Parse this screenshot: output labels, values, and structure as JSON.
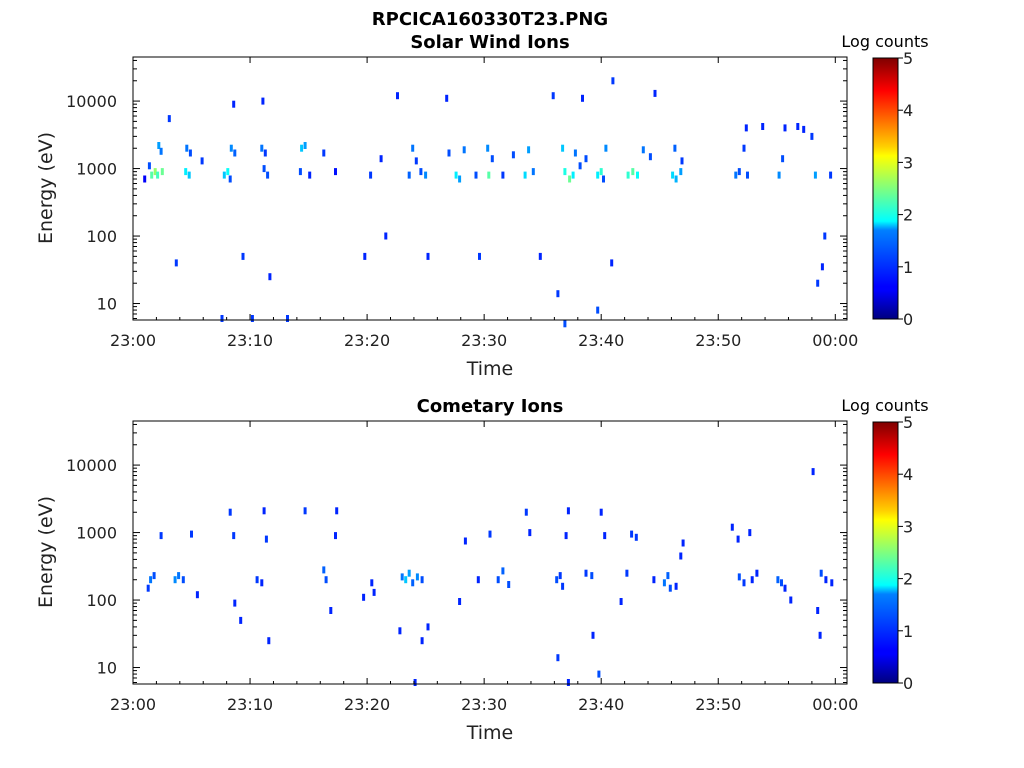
{
  "figure_title": "RPCICA160330T23.PNG",
  "chart_data": [
    {
      "type": "heatmap",
      "title": "Solar Wind Ions",
      "xlabel": "Time",
      "ylabel": "Energy (eV)",
      "x_ticks": [
        "23:00",
        "23:10",
        "23:20",
        "23:30",
        "23:40",
        "23:50",
        "00:00"
      ],
      "x_range_minutes": [
        0,
        61
      ],
      "y_ticks": [
        "10",
        "100",
        "1000",
        "10000"
      ],
      "y_scale": "log",
      "y_range": [
        5.7,
        45000
      ],
      "colorbar": {
        "label": "Log counts",
        "ticks": [
          "0",
          "1",
          "2",
          "3",
          "4",
          "5"
        ],
        "range": [
          0,
          5
        ],
        "colormap": "jet"
      },
      "points": [
        [
          1.6,
          800,
          2.3
        ],
        [
          1.9,
          900,
          2.6
        ],
        [
          2.1,
          800,
          2.2
        ],
        [
          2.5,
          900,
          2.4
        ],
        [
          2.2,
          2200,
          1.4
        ],
        [
          2.4,
          1800,
          1.2
        ],
        [
          1.4,
          1100,
          1.0
        ],
        [
          1.0,
          700,
          0.6
        ],
        [
          4.5,
          900,
          1.8
        ],
        [
          4.8,
          800,
          1.6
        ],
        [
          4.6,
          2000,
          1.2
        ],
        [
          4.9,
          1700,
          1.0
        ],
        [
          5.9,
          1300,
          0.9
        ],
        [
          7.8,
          800,
          1.6
        ],
        [
          8.1,
          900,
          1.9
        ],
        [
          8.4,
          2000,
          1.3
        ],
        [
          8.7,
          1700,
          1.1
        ],
        [
          8.3,
          700,
          1.0
        ],
        [
          11.0,
          2000,
          1.2
        ],
        [
          11.2,
          1000,
          1.0
        ],
        [
          11.5,
          800,
          1.0
        ],
        [
          11.3,
          1700,
          0.9
        ],
        [
          14.4,
          2000,
          1.6
        ],
        [
          14.7,
          2200,
          1.4
        ],
        [
          14.3,
          900,
          1.0
        ],
        [
          15.1,
          800,
          0.8
        ],
        [
          16.3,
          1700,
          0.9
        ],
        [
          17.3,
          900,
          0.7
        ],
        [
          20.3,
          800,
          0.9
        ],
        [
          21.2,
          1400,
          0.8
        ],
        [
          23.6,
          800,
          1.1
        ],
        [
          23.9,
          2000,
          1.2
        ],
        [
          24.2,
          1300,
          0.9
        ],
        [
          24.6,
          900,
          1.0
        ],
        [
          25.0,
          800,
          1.3
        ],
        [
          27.0,
          1700,
          1.0
        ],
        [
          27.6,
          800,
          1.8
        ],
        [
          27.9,
          700,
          1.4
        ],
        [
          28.3,
          1900,
          1.2
        ],
        [
          29.3,
          800,
          1.0
        ],
        [
          30.3,
          2000,
          1.3
        ],
        [
          30.4,
          800,
          2.3
        ],
        [
          30.7,
          1400,
          1.0
        ],
        [
          31.6,
          800,
          0.9
        ],
        [
          32.5,
          1600,
          1.0
        ],
        [
          33.5,
          800,
          1.7
        ],
        [
          33.8,
          1900,
          1.4
        ],
        [
          34.2,
          900,
          1.2
        ],
        [
          36.7,
          2000,
          1.6
        ],
        [
          36.9,
          900,
          2.0
        ],
        [
          37.3,
          700,
          2.4
        ],
        [
          37.6,
          800,
          1.8
        ],
        [
          37.8,
          1700,
          1.2
        ],
        [
          38.2,
          1100,
          1.0
        ],
        [
          38.7,
          1400,
          1.0
        ],
        [
          39.7,
          800,
          1.8
        ],
        [
          40.0,
          900,
          2.1
        ],
        [
          40.4,
          2000,
          1.3
        ],
        [
          40.2,
          700,
          1.0
        ],
        [
          42.3,
          800,
          2.1
        ],
        [
          42.7,
          900,
          2.3
        ],
        [
          43.1,
          800,
          1.9
        ],
        [
          43.6,
          1900,
          1.2
        ],
        [
          44.2,
          1500,
          1.0
        ],
        [
          46.1,
          800,
          1.7
        ],
        [
          46.4,
          700,
          1.5
        ],
        [
          46.8,
          900,
          1.4
        ],
        [
          46.3,
          2000,
          1.1
        ],
        [
          46.9,
          1300,
          0.9
        ],
        [
          51.5,
          800,
          1.2
        ],
        [
          51.8,
          900,
          1.0
        ],
        [
          52.2,
          2000,
          0.9
        ],
        [
          52.5,
          800,
          1.0
        ],
        [
          55.2,
          800,
          1.3
        ],
        [
          55.5,
          1400,
          1.0
        ],
        [
          58.3,
          800,
          1.4
        ],
        [
          59.6,
          800,
          0.9
        ],
        [
          58.0,
          3000,
          0.9
        ],
        [
          59.1,
          100,
          0.9
        ],
        [
          58.5,
          20,
          0.9
        ],
        [
          58.9,
          35,
          0.8
        ],
        [
          3.7,
          40,
          0.9
        ],
        [
          7.6,
          6,
          0.9
        ],
        [
          10.2,
          6,
          0.9
        ],
        [
          13.2,
          6,
          0.9
        ],
        [
          36.3,
          14,
          0.9
        ],
        [
          39.7,
          8,
          1.0
        ],
        [
          36.9,
          5,
          1.0
        ],
        [
          9.4,
          50,
          0.9
        ],
        [
          11.7,
          25,
          0.8
        ],
        [
          19.8,
          50,
          0.8
        ],
        [
          21.6,
          100,
          0.8
        ],
        [
          25.2,
          50,
          0.8
        ],
        [
          29.6,
          50,
          0.9
        ],
        [
          34.8,
          50,
          0.8
        ],
        [
          40.9,
          40,
          0.8
        ],
        [
          3.1,
          5500,
          0.9
        ],
        [
          8.6,
          9000,
          0.8
        ],
        [
          11.1,
          10000,
          0.8
        ],
        [
          22.6,
          12000,
          0.8
        ],
        [
          26.8,
          11000,
          0.8
        ],
        [
          35.9,
          12000,
          0.9
        ],
        [
          38.4,
          11000,
          0.8
        ],
        [
          41.0,
          20000,
          0.9
        ],
        [
          44.6,
          13000,
          0.8
        ],
        [
          52.4,
          4000,
          0.8
        ],
        [
          53.8,
          4200,
          0.8
        ],
        [
          55.7,
          4000,
          0.8
        ],
        [
          56.8,
          4200,
          0.8
        ],
        [
          57.3,
          3800,
          0.8
        ]
      ]
    },
    {
      "type": "heatmap",
      "title": "Cometary Ions",
      "xlabel": "Time",
      "ylabel": "Energy (eV)",
      "x_ticks": [
        "23:00",
        "23:10",
        "23:20",
        "23:30",
        "23:40",
        "23:50",
        "00:00"
      ],
      "x_range_minutes": [
        0,
        61
      ],
      "y_ticks": [
        "10",
        "100",
        "1000",
        "10000"
      ],
      "y_scale": "log",
      "y_range": [
        5.7,
        45000
      ],
      "colorbar": {
        "label": "Log counts",
        "ticks": [
          "0",
          "1",
          "2",
          "3",
          "4",
          "5"
        ],
        "range": [
          0,
          5
        ],
        "colormap": "jet"
      },
      "points": [
        [
          1.5,
          200,
          1.2
        ],
        [
          1.8,
          230,
          1.0
        ],
        [
          1.3,
          150,
          0.9
        ],
        [
          2.4,
          900,
          0.9
        ],
        [
          3.6,
          200,
          1.3
        ],
        [
          3.9,
          230,
          1.2
        ],
        [
          4.3,
          200,
          1.0
        ],
        [
          5.0,
          950,
          0.9
        ],
        [
          5.5,
          120,
          0.8
        ],
        [
          8.3,
          2000,
          0.9
        ],
        [
          8.6,
          900,
          0.9
        ],
        [
          8.7,
          90,
          0.8
        ],
        [
          9.2,
          50,
          0.8
        ],
        [
          10.6,
          200,
          0.9
        ],
        [
          11.0,
          180,
          0.8
        ],
        [
          11.2,
          2100,
          0.8
        ],
        [
          11.4,
          800,
          0.9
        ],
        [
          11.6,
          25,
          0.8
        ],
        [
          14.7,
          2100,
          0.9
        ],
        [
          16.3,
          280,
          1.1
        ],
        [
          16.5,
          200,
          1.0
        ],
        [
          16.9,
          70,
          0.8
        ],
        [
          17.3,
          900,
          0.8
        ],
        [
          17.4,
          2100,
          0.8
        ],
        [
          19.7,
          110,
          0.8
        ],
        [
          20.4,
          180,
          0.8
        ],
        [
          20.6,
          130,
          0.8
        ],
        [
          23.0,
          220,
          1.2
        ],
        [
          23.3,
          200,
          1.6
        ],
        [
          23.6,
          250,
          1.4
        ],
        [
          23.9,
          180,
          1.1
        ],
        [
          24.3,
          220,
          1.3
        ],
        [
          24.7,
          200,
          1.0
        ],
        [
          25.2,
          40,
          0.8
        ],
        [
          22.8,
          35,
          0.8
        ],
        [
          24.7,
          25,
          0.8
        ],
        [
          24.1,
          6,
          0.8
        ],
        [
          27.9,
          95,
          0.8
        ],
        [
          28.4,
          750,
          0.8
        ],
        [
          29.5,
          200,
          0.8
        ],
        [
          30.5,
          950,
          0.9
        ],
        [
          31.2,
          200,
          1.0
        ],
        [
          31.6,
          270,
          1.1
        ],
        [
          32.1,
          170,
          1.0
        ],
        [
          33.6,
          2000,
          0.9
        ],
        [
          33.9,
          1000,
          0.8
        ],
        [
          36.2,
          200,
          1.0
        ],
        [
          36.5,
          230,
          0.9
        ],
        [
          37.0,
          900,
          0.8
        ],
        [
          37.2,
          2100,
          0.8
        ],
        [
          36.7,
          160,
          0.9
        ],
        [
          36.3,
          14,
          0.9
        ],
        [
          37.2,
          6,
          0.8
        ],
        [
          38.7,
          250,
          0.9
        ],
        [
          39.2,
          230,
          1.0
        ],
        [
          39.3,
          30,
          0.8
        ],
        [
          39.8,
          8,
          1.0
        ],
        [
          40.0,
          2000,
          0.8
        ],
        [
          40.3,
          900,
          0.8
        ],
        [
          41.7,
          95,
          0.8
        ],
        [
          42.2,
          250,
          0.9
        ],
        [
          42.6,
          950,
          0.9
        ],
        [
          43.0,
          850,
          0.9
        ],
        [
          44.5,
          200,
          0.8
        ],
        [
          45.4,
          180,
          1.2
        ],
        [
          45.7,
          230,
          1.1
        ],
        [
          45.9,
          150,
          1.0
        ],
        [
          46.4,
          160,
          0.8
        ],
        [
          46.8,
          450,
          0.8
        ],
        [
          47.0,
          700,
          0.8
        ],
        [
          51.2,
          1200,
          0.8
        ],
        [
          51.7,
          800,
          0.8
        ],
        [
          51.8,
          220,
          1.0
        ],
        [
          52.2,
          180,
          0.9
        ],
        [
          52.7,
          1000,
          0.8
        ],
        [
          52.9,
          200,
          0.8
        ],
        [
          53.3,
          250,
          0.8
        ],
        [
          55.1,
          200,
          1.1
        ],
        [
          55.4,
          180,
          1.0
        ],
        [
          55.7,
          150,
          0.8
        ],
        [
          56.2,
          100,
          0.8
        ],
        [
          58.1,
          8000,
          0.8
        ],
        [
          58.5,
          70,
          0.8
        ],
        [
          58.7,
          30,
          0.8
        ],
        [
          58.8,
          250,
          1.0
        ],
        [
          59.2,
          200,
          0.8
        ],
        [
          59.7,
          180,
          0.8
        ]
      ]
    }
  ]
}
